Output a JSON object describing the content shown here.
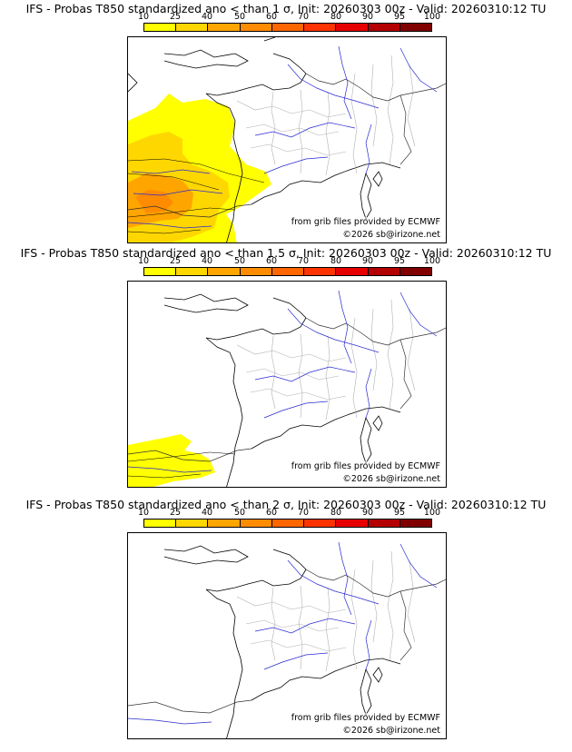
{
  "scale": {
    "ticks": [
      "10",
      "25",
      "40",
      "50",
      "60",
      "70",
      "80",
      "90",
      "95",
      "100"
    ],
    "colors": [
      "#ffff00",
      "#ffd700",
      "#ffa500",
      "#ff8c00",
      "#ff6600",
      "#ff3300",
      "#e60000",
      "#b30000",
      "#800000"
    ]
  },
  "panels": [
    {
      "title": "IFS - Probas T850  standardized ano < than 1 σ, Init: 20260303 00z - Valid: 20260310:12 TU",
      "source_credit": "from grib files provided by ECMWF",
      "copyright": "©2026 sb@irizone.net"
    },
    {
      "title": "IFS - Probas T850  standardized ano < than 1.5 σ, Init: 20260303 00z - Valid: 20260310:12 TU",
      "source_credit": "from grib files provided by ECMWF",
      "copyright": "©2026 sb@irizone.net"
    },
    {
      "title": "IFS - Probas T850  standardized ano < than 2 σ, Init: 20260303 00z - Valid: 20260310:12 TU",
      "source_credit": "from grib files provided by ECMWF",
      "copyright": "©2026 sb@irizone.net"
    }
  ]
}
